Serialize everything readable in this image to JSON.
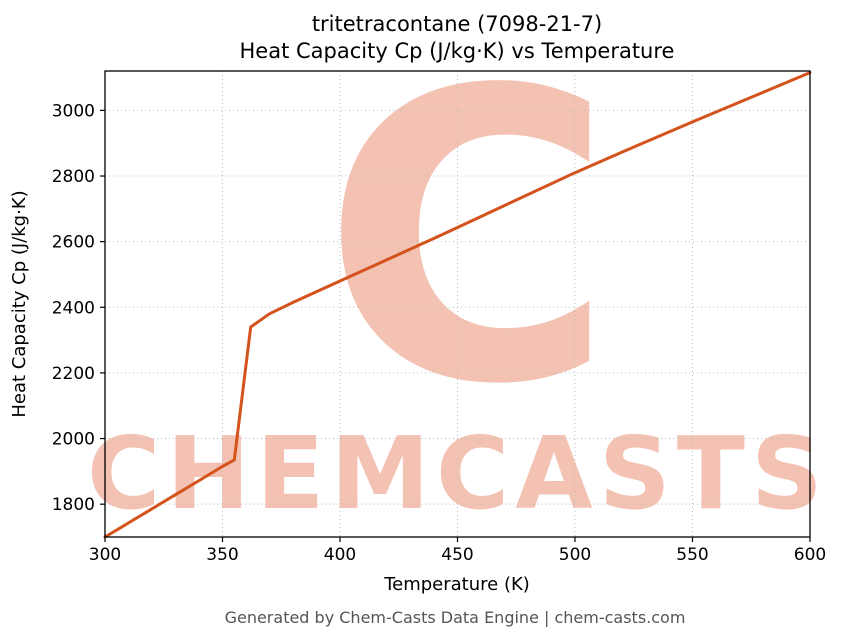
{
  "title_line1": "tritetracontane (7098-21-7)",
  "title_line2": "Heat Capacity Cp (J/kg·K) vs Temperature",
  "footer": "Generated by Chem-Casts Data Engine | chem-casts.com",
  "watermark": {
    "letter": "C",
    "text": "CHEMCASTS",
    "color": "#e8876a",
    "opacity": "0.5"
  },
  "chart_data": {
    "type": "line",
    "title": "tritetracontane (7098-21-7) — Heat Capacity Cp (J/kg·K) vs Temperature",
    "xlabel": "Temperature (K)",
    "ylabel": "Heat Capacity Cp (J/kg·K)",
    "xlim": [
      300,
      600
    ],
    "ylim": [
      1700,
      3120
    ],
    "xticks": [
      300,
      350,
      400,
      450,
      500,
      550,
      600
    ],
    "yticks": [
      1800,
      2000,
      2200,
      2400,
      2600,
      2800,
      3000
    ],
    "grid": true,
    "grid_style": "dotted",
    "grid_color": "#bbbbbb",
    "line_color": "#d4521c",
    "line_width": 3,
    "legend": "none",
    "series": [
      {
        "name": "Heat Capacity Cp",
        "points": [
          [
            300,
            1700
          ],
          [
            310,
            1743
          ],
          [
            320,
            1786
          ],
          [
            330,
            1829
          ],
          [
            340,
            1872
          ],
          [
            350,
            1915
          ],
          [
            355,
            1935
          ],
          [
            362,
            2340
          ],
          [
            370,
            2380
          ],
          [
            380,
            2415
          ],
          [
            400,
            2480
          ],
          [
            420,
            2545
          ],
          [
            440,
            2610
          ],
          [
            450,
            2643
          ],
          [
            475,
            2727
          ],
          [
            500,
            2810
          ],
          [
            520,
            2873
          ],
          [
            550,
            2965
          ],
          [
            575,
            3040
          ],
          [
            600,
            3115
          ]
        ]
      }
    ]
  }
}
